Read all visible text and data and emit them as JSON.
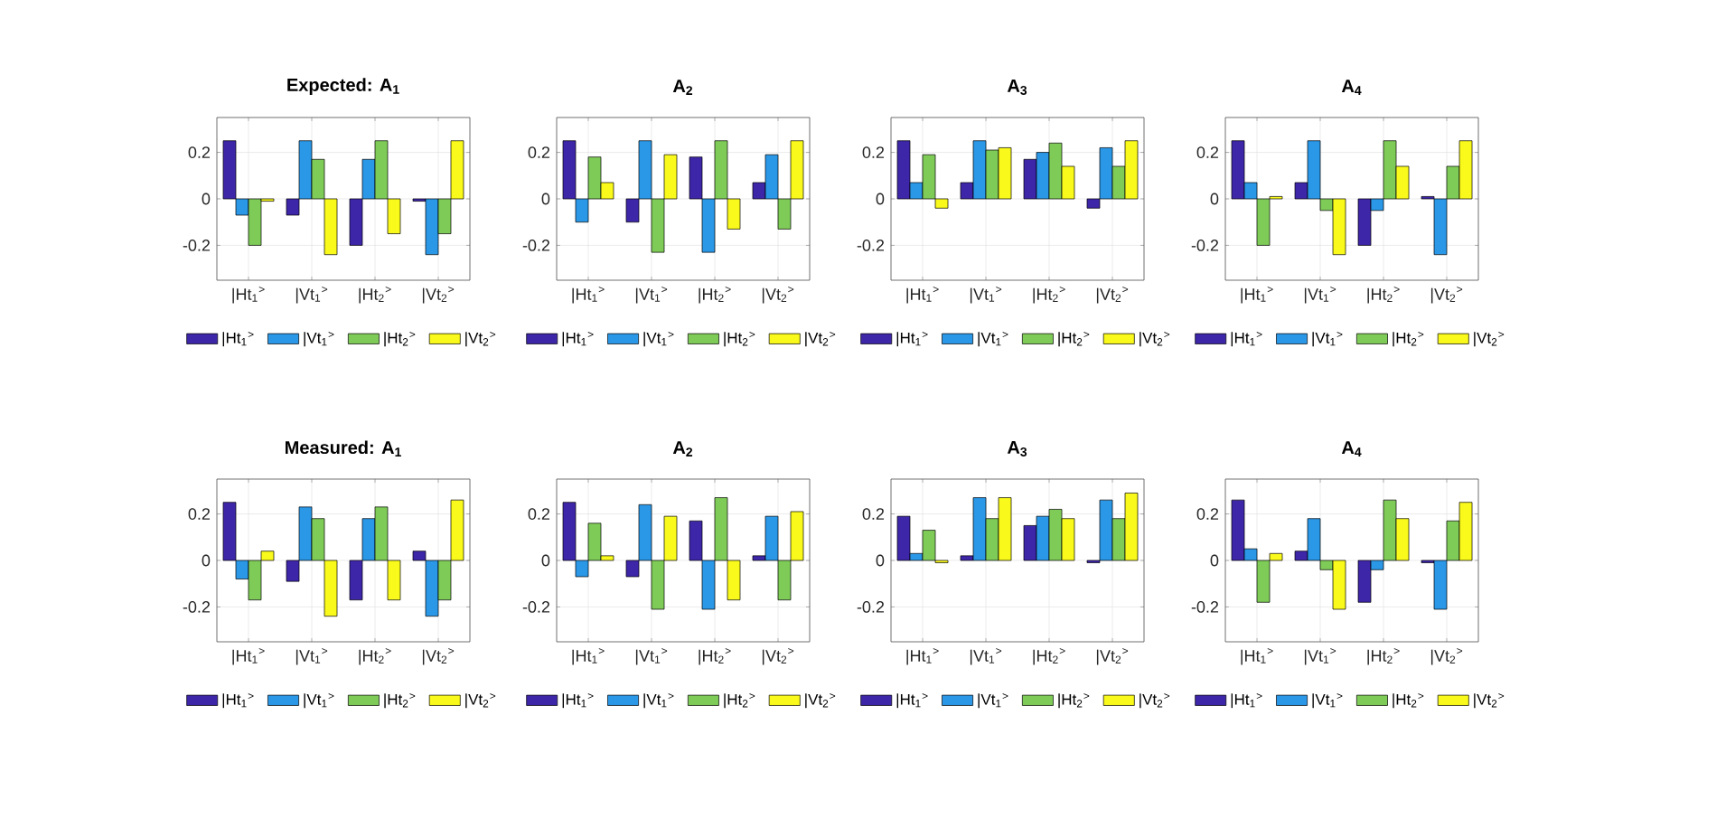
{
  "chart_data": [
    {
      "type": "bar",
      "title": "Expected: A$_{1}$",
      "categories": [
        "|Ht$_{1}$$^{>}$",
        "|Vt$_{1}$$^{>}$",
        "|Ht$_{2}$$^{>}$",
        "|Vt$_{2}$$^{>}$"
      ],
      "series": [
        {
          "name": "|Ht$_{1}$$^{>}$",
          "color": "#3e26a8",
          "values": [
            0.25,
            -0.07,
            -0.2,
            -0.01
          ]
        },
        {
          "name": "|Vt$_{1}$$^{>}$",
          "color": "#2a97e7",
          "values": [
            -0.07,
            0.25,
            0.17,
            -0.24
          ]
        },
        {
          "name": "|Ht$_{2}$$^{>}$",
          "color": "#7fcb58",
          "values": [
            -0.2,
            0.17,
            0.25,
            -0.15
          ]
        },
        {
          "name": "|Vt$_{2}$$^{>}$",
          "color": "#f9f91b",
          "values": [
            -0.01,
            -0.24,
            -0.15,
            0.25
          ]
        }
      ],
      "ylim": [
        -0.35,
        0.35
      ],
      "yticks": [
        -0.2,
        0,
        0.2
      ],
      "grid": true,
      "legend": "bottom"
    },
    {
      "type": "bar",
      "title": "A$_{2}$",
      "categories": [
        "|Ht$_{1}$$^{>}$",
        "|Vt$_{1}$$^{>}$",
        "|Ht$_{2}$$^{>}$",
        "|Vt$_{2}$$^{>}$"
      ],
      "series": [
        {
          "name": "|Ht$_{1}$$^{>}$",
          "color": "#3e26a8",
          "values": [
            0.25,
            -0.1,
            0.18,
            0.07
          ]
        },
        {
          "name": "|Vt$_{1}$$^{>}$",
          "color": "#2a97e7",
          "values": [
            -0.1,
            0.25,
            -0.23,
            0.19
          ]
        },
        {
          "name": "|Ht$_{2}$$^{>}$",
          "color": "#7fcb58",
          "values": [
            0.18,
            -0.23,
            0.25,
            -0.13
          ]
        },
        {
          "name": "|Vt$_{2}$$^{>}$",
          "color": "#f9f91b",
          "values": [
            0.07,
            0.19,
            -0.13,
            0.25
          ]
        }
      ],
      "ylim": [
        -0.35,
        0.35
      ],
      "yticks": [
        -0.2,
        0,
        0.2
      ],
      "grid": true,
      "legend": "bottom"
    },
    {
      "type": "bar",
      "title": "A$_{3}$",
      "categories": [
        "|Ht$_{1}$$^{>}$",
        "|Vt$_{1}$$^{>}$",
        "|Ht$_{2}$$^{>}$",
        "|Vt$_{2}$$^{>}$"
      ],
      "series": [
        {
          "name": "|Ht$_{1}$$^{>}$",
          "color": "#3e26a8",
          "values": [
            0.25,
            0.07,
            0.17,
            -0.04
          ]
        },
        {
          "name": "|Vt$_{1}$$^{>}$",
          "color": "#2a97e7",
          "values": [
            0.07,
            0.25,
            0.2,
            0.22
          ]
        },
        {
          "name": "|Ht$_{2}$$^{>}$",
          "color": "#7fcb58",
          "values": [
            0.19,
            0.21,
            0.24,
            0.14
          ]
        },
        {
          "name": "|Vt$_{2}$$^{>}$",
          "color": "#f9f91b",
          "values": [
            -0.04,
            0.22,
            0.14,
            0.25
          ]
        }
      ],
      "ylim": [
        -0.35,
        0.35
      ],
      "yticks": [
        -0.2,
        0,
        0.2
      ],
      "grid": true,
      "legend": "bottom"
    },
    {
      "type": "bar",
      "title": "A$_{4}$",
      "categories": [
        "|Ht$_{1}$$^{>}$",
        "|Vt$_{1}$$^{>}$",
        "|Ht$_{2}$$^{>}$",
        "|Vt$_{2}$$^{>}$"
      ],
      "series": [
        {
          "name": "|Ht$_{1}$$^{>}$",
          "color": "#3e26a8",
          "values": [
            0.25,
            0.07,
            -0.2,
            0.01
          ]
        },
        {
          "name": "|Vt$_{1}$$^{>}$",
          "color": "#2a97e7",
          "values": [
            0.07,
            0.25,
            -0.05,
            -0.24
          ]
        },
        {
          "name": "|Ht$_{2}$$^{>}$",
          "color": "#7fcb58",
          "values": [
            -0.2,
            -0.05,
            0.25,
            0.14
          ]
        },
        {
          "name": "|Vt$_{2}$$^{>}$",
          "color": "#f9f91b",
          "values": [
            0.01,
            -0.24,
            0.14,
            0.25
          ]
        }
      ],
      "ylim": [
        -0.35,
        0.35
      ],
      "yticks": [
        -0.2,
        0,
        0.2
      ],
      "grid": true,
      "legend": "bottom"
    },
    {
      "type": "bar",
      "title": "Measured: A$_{1}$",
      "categories": [
        "|Ht$_{1}$$^{>}$",
        "|Vt$_{1}$$^{>}$",
        "|Ht$_{2}$$^{>}$",
        "|Vt$_{2}$$^{>}$"
      ],
      "series": [
        {
          "name": "|Ht$_{1}$$^{>}$",
          "color": "#3e26a8",
          "values": [
            0.25,
            -0.09,
            -0.17,
            0.04
          ]
        },
        {
          "name": "|Vt$_{1}$$^{>}$",
          "color": "#2a97e7",
          "values": [
            -0.08,
            0.23,
            0.18,
            -0.24
          ]
        },
        {
          "name": "|Ht$_{2}$$^{>}$",
          "color": "#7fcb58",
          "values": [
            -0.17,
            0.18,
            0.23,
            -0.17
          ]
        },
        {
          "name": "|Vt$_{2}$$^{>}$",
          "color": "#f9f91b",
          "values": [
            0.04,
            -0.24,
            -0.17,
            0.26
          ]
        }
      ],
      "ylim": [
        -0.35,
        0.35
      ],
      "yticks": [
        -0.2,
        0,
        0.2
      ],
      "grid": true,
      "legend": "bottom"
    },
    {
      "type": "bar",
      "title": "A$_{2}$",
      "categories": [
        "|Ht$_{1}$$^{>}$",
        "|Vt$_{1}$$^{>}$",
        "|Ht$_{2}$$^{>}$",
        "|Vt$_{2}$$^{>}$"
      ],
      "series": [
        {
          "name": "|Ht$_{1}$$^{>}$",
          "color": "#3e26a8",
          "values": [
            0.25,
            -0.07,
            0.17,
            0.02
          ]
        },
        {
          "name": "|Vt$_{1}$$^{>}$",
          "color": "#2a97e7",
          "values": [
            -0.07,
            0.24,
            -0.21,
            0.19
          ]
        },
        {
          "name": "|Ht$_{2}$$^{>}$",
          "color": "#7fcb58",
          "values": [
            0.16,
            -0.21,
            0.27,
            -0.17
          ]
        },
        {
          "name": "|Vt$_{2}$$^{>}$",
          "color": "#f9f91b",
          "values": [
            0.02,
            0.19,
            -0.17,
            0.21
          ]
        }
      ],
      "ylim": [
        -0.35,
        0.35
      ],
      "yticks": [
        -0.2,
        0,
        0.2
      ],
      "grid": true,
      "legend": "bottom"
    },
    {
      "type": "bar",
      "title": "A$_{3}$",
      "categories": [
        "|Ht$_{1}$$^{>}$",
        "|Vt$_{1}$$^{>}$",
        "|Ht$_{2}$$^{>}$",
        "|Vt$_{2}$$^{>}$"
      ],
      "series": [
        {
          "name": "|Ht$_{1}$$^{>}$",
          "color": "#3e26a8",
          "values": [
            0.19,
            0.02,
            0.15,
            -0.01
          ]
        },
        {
          "name": "|Vt$_{1}$$^{>}$",
          "color": "#2a97e7",
          "values": [
            0.03,
            0.27,
            0.19,
            0.26
          ]
        },
        {
          "name": "|Ht$_{2}$$^{>}$",
          "color": "#7fcb58",
          "values": [
            0.13,
            0.18,
            0.22,
            0.18
          ]
        },
        {
          "name": "|Vt$_{2}$$^{>}$",
          "color": "#f9f91b",
          "values": [
            -0.01,
            0.27,
            0.18,
            0.29
          ]
        }
      ],
      "ylim": [
        -0.35,
        0.35
      ],
      "yticks": [
        -0.2,
        0,
        0.2
      ],
      "grid": true,
      "legend": "bottom"
    },
    {
      "type": "bar",
      "title": "A$_{4}$",
      "categories": [
        "|Ht$_{1}$$^{>}$",
        "|Vt$_{1}$$^{>}$",
        "|Ht$_{2}$$^{>}$",
        "|Vt$_{2}$$^{>}$"
      ],
      "series": [
        {
          "name": "|Ht$_{1}$$^{>}$",
          "color": "#3e26a8",
          "values": [
            0.26,
            0.04,
            -0.18,
            -0.01
          ]
        },
        {
          "name": "|Vt$_{1}$$^{>}$",
          "color": "#2a97e7",
          "values": [
            0.05,
            0.18,
            -0.04,
            -0.21
          ]
        },
        {
          "name": "|Ht$_{2}$$^{>}$",
          "color": "#7fcb58",
          "values": [
            -0.18,
            -0.04,
            0.26,
            0.17
          ]
        },
        {
          "name": "|Vt$_{2}$$^{>}$",
          "color": "#f9f91b",
          "values": [
            0.03,
            -0.21,
            0.18,
            0.25
          ]
        }
      ],
      "ylim": [
        -0.35,
        0.35
      ],
      "yticks": [
        -0.2,
        0,
        0.2
      ],
      "grid": true,
      "legend": "bottom"
    }
  ]
}
